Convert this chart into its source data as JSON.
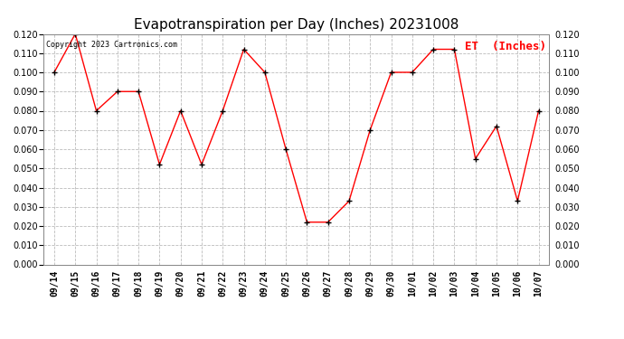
{
  "title": "Evapotranspiration per Day (Inches) 20231008",
  "legend_label": "ET  (Inches)",
  "copyright_text": "Copyright 2023 Cartronics.com",
  "dates": [
    "09/14",
    "09/15",
    "09/16",
    "09/17",
    "09/18",
    "09/19",
    "09/20",
    "09/21",
    "09/22",
    "09/23",
    "09/24",
    "09/25",
    "09/26",
    "09/27",
    "09/28",
    "09/29",
    "09/30",
    "10/01",
    "10/02",
    "10/03",
    "10/04",
    "10/05",
    "10/06",
    "10/07"
  ],
  "values": [
    0.1,
    0.12,
    0.08,
    0.09,
    0.09,
    0.052,
    0.08,
    0.052,
    0.08,
    0.112,
    0.1,
    0.06,
    0.022,
    0.022,
    0.033,
    0.07,
    0.1,
    0.1,
    0.112,
    0.112,
    0.055,
    0.072,
    0.033,
    0.08
  ],
  "line_color": "red",
  "marker_color": "black",
  "grid_color": "#bbbbbb",
  "background_color": "#ffffff",
  "ylim": [
    0.0,
    0.12
  ],
  "ytick_step": 0.01,
  "title_fontsize": 11,
  "tick_fontsize": 7,
  "legend_fontsize": 9,
  "copyright_fontsize": 6,
  "legend_color": "red"
}
